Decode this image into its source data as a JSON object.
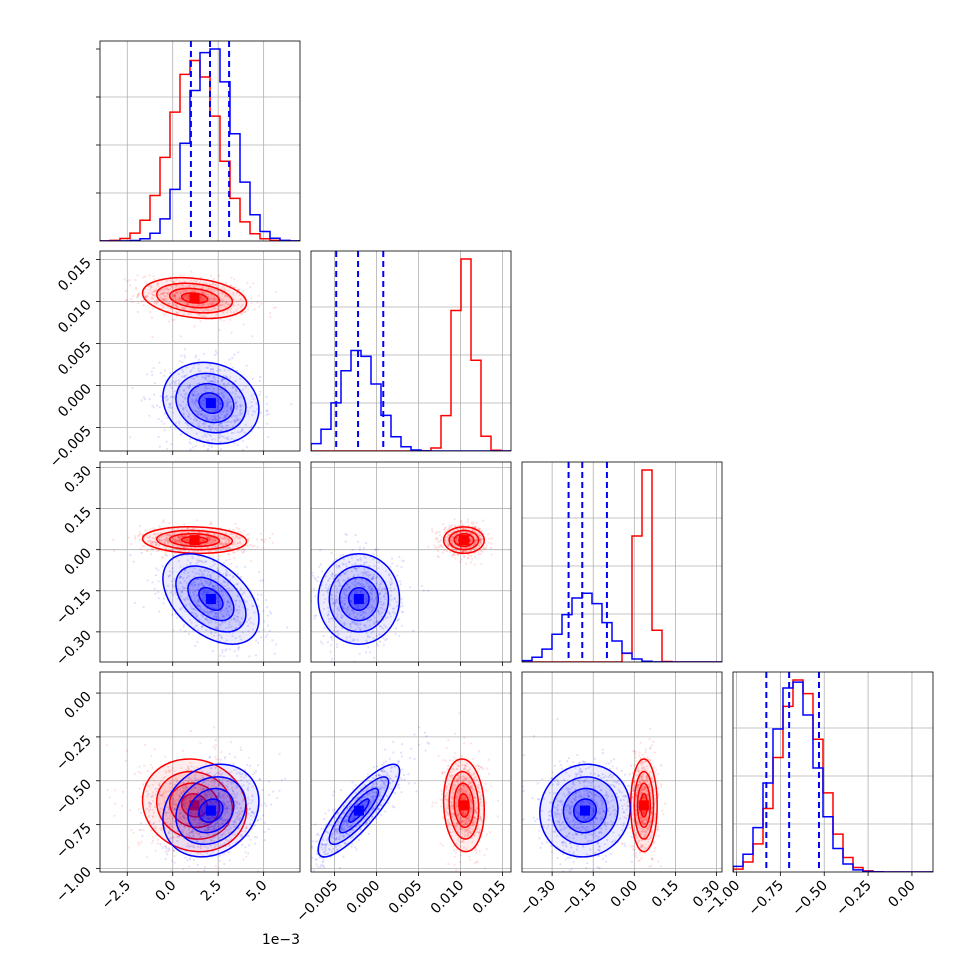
{
  "chart_data": {
    "type": "corner",
    "parameters": 4,
    "series": [
      {
        "name": "",
        "color": "#ff0000",
        "means": [
          0.0012,
          0.0104,
          0.035,
          -0.64
        ],
        "sigmas": [
          0.0013,
          0.0011,
          0.022,
          0.12
        ],
        "corr": [
          [
            1,
            -0.25,
            -0.1,
            -0.1
          ],
          [
            -0.25,
            1,
            0.0,
            -0.1
          ],
          [
            -0.1,
            0.0,
            1,
            0.0
          ],
          [
            -0.1,
            -0.1,
            0.0,
            1
          ]
        ]
      },
      {
        "name": "",
        "color": "#0000ff",
        "means": [
          0.0021,
          -0.0021,
          -0.18,
          -0.67
        ],
        "sigmas": [
          0.0012,
          0.0022,
          0.075,
          0.12
        ],
        "corr": [
          [
            1,
            -0.15,
            -0.45,
            0.2
          ],
          [
            -0.15,
            1,
            0.0,
            0.85
          ],
          [
            -0.45,
            0.0,
            1,
            0.05
          ],
          [
            0.2,
            0.85,
            0.05,
            1
          ]
        ]
      }
    ],
    "quantile_lines": [
      [
        0.001,
        0.00205,
        0.0031
      ],
      [
        -0.0048,
        -0.0022,
        0.0008
      ],
      [
        -0.24,
        -0.19,
        -0.1
      ],
      [
        -0.83,
        -0.7,
        -0.53
      ]
    ],
    "quantile_color": "#0000ff",
    "axes": [
      {
        "range": [
          -0.004,
          0.007
        ],
        "ticks": [
          -0.0025,
          0.0,
          0.0025,
          0.005
        ],
        "tick_labels": [
          "−2.5",
          "0.0",
          "2.5",
          "5.0"
        ],
        "offset_label": "1e−3"
      },
      {
        "range": [
          -0.0078,
          0.016
        ],
        "ticks": [
          -0.005,
          0.0,
          0.005,
          0.01,
          0.015
        ],
        "tick_labels": [
          "−0.005",
          "0.000",
          "0.005",
          "0.010",
          "0.015"
        ]
      },
      {
        "range": [
          -0.41,
          0.32
        ],
        "ticks": [
          -0.3,
          -0.15,
          0.0,
          0.15,
          0.3
        ],
        "tick_labels": [
          "−0.30",
          "−0.15",
          "0.00",
          "0.15",
          "0.30"
        ]
      },
      {
        "range": [
          -1.02,
          0.12
        ],
        "ticks": [
          -1.0,
          -0.75,
          -0.5,
          -0.25,
          0.0
        ],
        "tick_labels": [
          "−1.00",
          "−0.75",
          "−0.50",
          "−0.25",
          "0.00"
        ]
      }
    ],
    "diagonal": "histogram",
    "off_diagonal": "scatter + 2D density contours",
    "grid": true
  }
}
